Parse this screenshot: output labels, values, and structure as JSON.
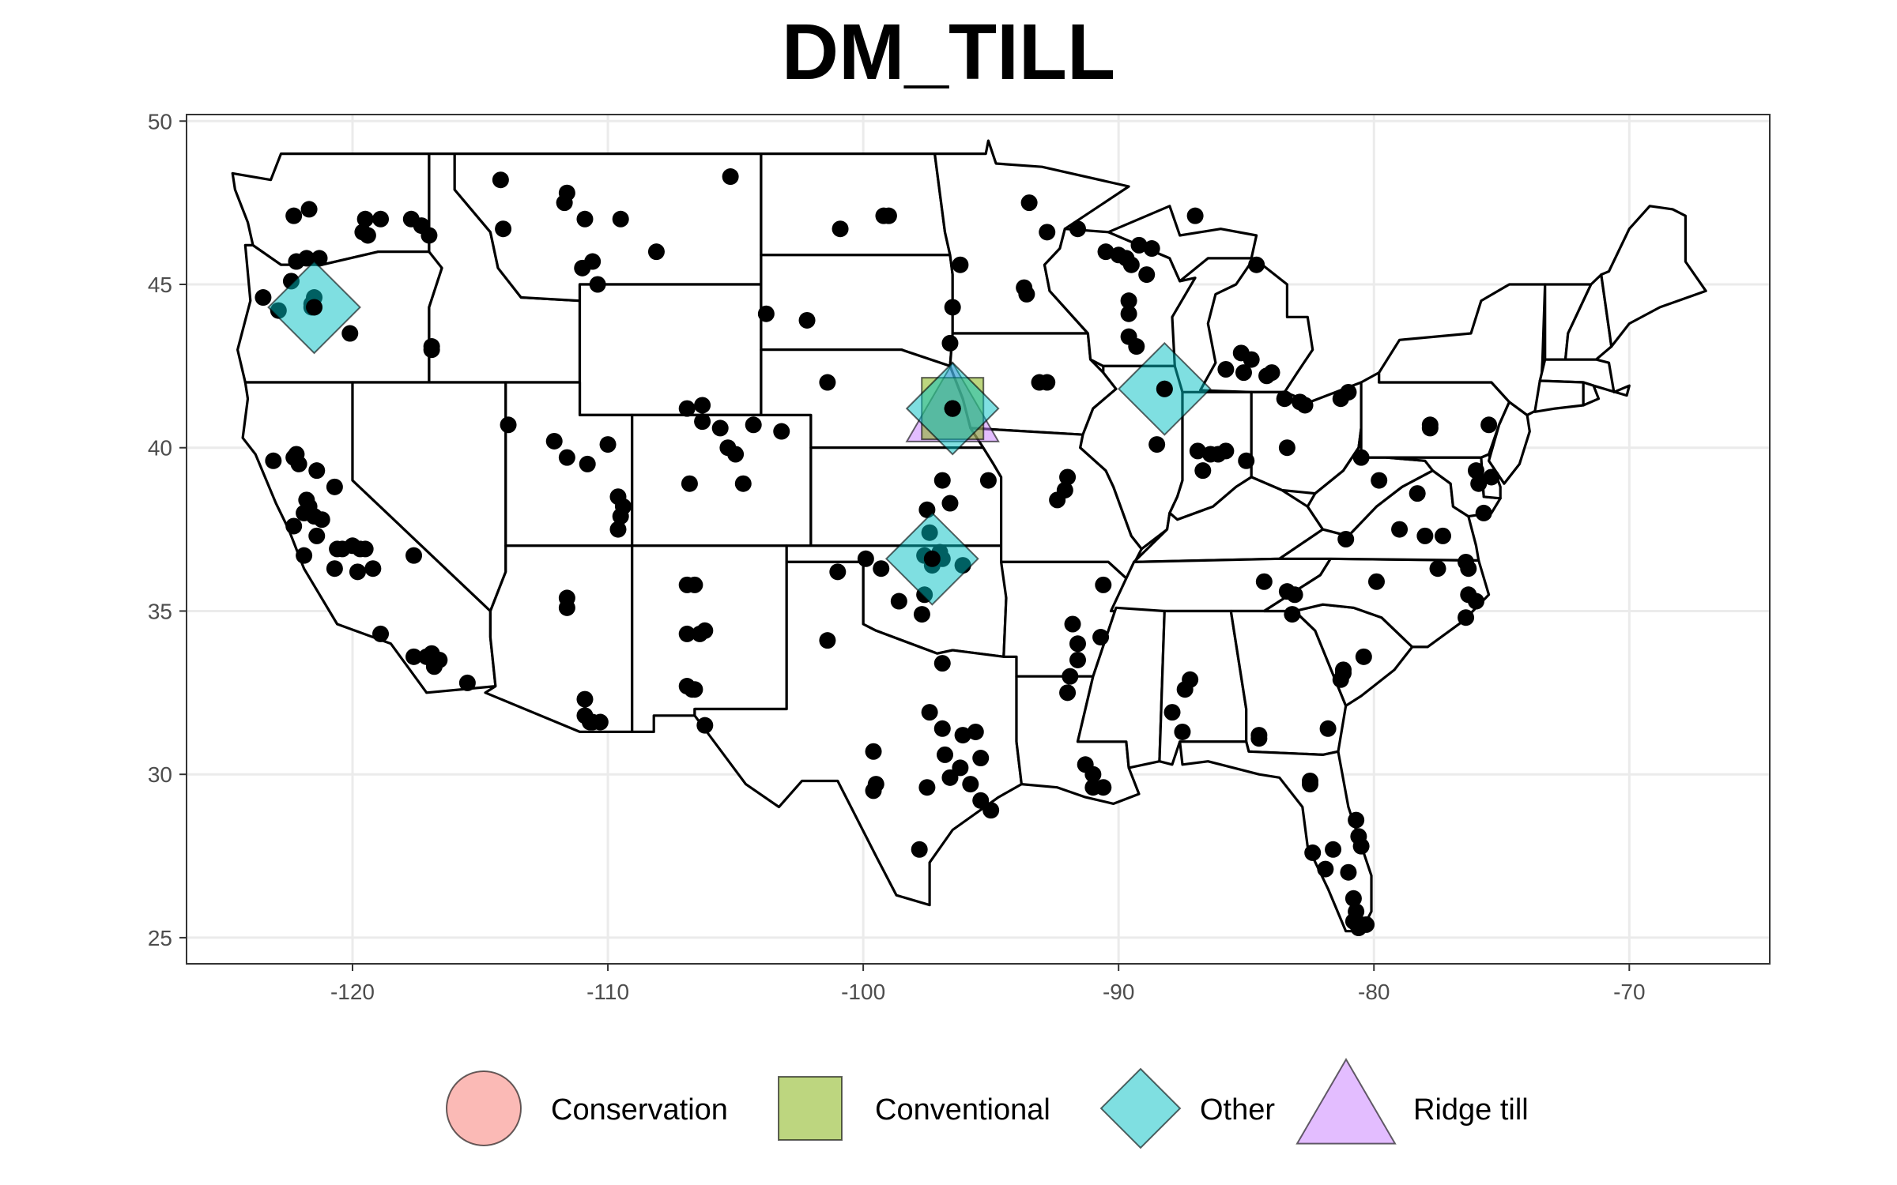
{
  "chart_data": {
    "type": "scatter",
    "title": "DM_TILL",
    "xlabel": "",
    "ylabel": "",
    "xlim": [
      -126.5,
      -64.5
    ],
    "ylim": [
      24.2,
      50.2
    ],
    "x_ticks": [
      -120,
      -110,
      -100,
      -90,
      -80,
      -70
    ],
    "y_ticks": [
      25,
      30,
      35,
      40,
      45,
      50
    ],
    "x_tick_labels": [
      "-120",
      "-110",
      "-100",
      "-90",
      "-80",
      "-70"
    ],
    "y_tick_labels": [
      "25",
      "30",
      "35",
      "40",
      "45",
      "50"
    ],
    "grid": true,
    "legend_position": "bottom",
    "legend": [
      {
        "name": "Conservation",
        "shape": "circle",
        "color": "#F8766D"
      },
      {
        "name": "Conventional",
        "shape": "square",
        "color": "#7CAE00"
      },
      {
        "name": "Other",
        "shape": "diamond",
        "color": "#00BFC4"
      },
      {
        "name": "Ridge till",
        "shape": "triangle",
        "color": "#C77CFF"
      }
    ],
    "series": [
      {
        "name": "Ridge till",
        "shape": "triangle",
        "points": [
          [
            -96.5,
            41.2
          ]
        ]
      },
      {
        "name": "Conventional",
        "shape": "square",
        "points": [
          [
            -96.5,
            41.2
          ]
        ]
      },
      {
        "name": "Other",
        "shape": "diamond",
        "points": [
          [
            -121.5,
            44.3
          ],
          [
            -96.5,
            41.2
          ],
          [
            -88.2,
            41.8
          ],
          [
            -97.3,
            36.6
          ]
        ]
      }
    ],
    "sites": [
      [
        -121.7,
        47.3
      ],
      [
        -122.3,
        47.1
      ],
      [
        -121.3,
        45.8
      ],
      [
        -121.8,
        45.8
      ],
      [
        -122.2,
        45.7
      ],
      [
        -122.4,
        45.1
      ],
      [
        -123.5,
        44.6
      ],
      [
        -122.9,
        44.2
      ],
      [
        -121.5,
        44.6
      ],
      [
        -121.6,
        44.3
      ],
      [
        -120.1,
        43.5
      ],
      [
        -119.6,
        46.6
      ],
      [
        -119.5,
        47.0
      ],
      [
        -119.4,
        46.5
      ],
      [
        -118.9,
        47.0
      ],
      [
        -117.7,
        47.0
      ],
      [
        -117.3,
        46.8
      ],
      [
        -117.0,
        46.5
      ],
      [
        -116.9,
        43.1
      ],
      [
        -116.9,
        43.0
      ],
      [
        -114.2,
        48.2
      ],
      [
        -114.1,
        46.7
      ],
      [
        -111.7,
        47.5
      ],
      [
        -111.6,
        47.8
      ],
      [
        -110.9,
        47.0
      ],
      [
        -109.5,
        47.0
      ],
      [
        -108.1,
        46.0
      ],
      [
        -110.6,
        45.7
      ],
      [
        -111.0,
        45.5
      ],
      [
        -110.4,
        45.0
      ],
      [
        -105.2,
        48.3
      ],
      [
        -100.9,
        46.7
      ],
      [
        -99.2,
        47.1
      ],
      [
        -99.0,
        47.1
      ],
      [
        -96.2,
        45.6
      ],
      [
        -96.5,
        44.3
      ],
      [
        -93.5,
        47.5
      ],
      [
        -96.6,
        43.2
      ],
      [
        -103.8,
        44.1
      ],
      [
        -102.2,
        43.9
      ],
      [
        -101.4,
        42.0
      ],
      [
        -106.9,
        41.2
      ],
      [
        -106.3,
        41.3
      ],
      [
        -106.3,
        40.8
      ],
      [
        -105.6,
        40.6
      ],
      [
        -105.3,
        40.0
      ],
      [
        -105.0,
        39.8
      ],
      [
        -104.3,
        40.7
      ],
      [
        -103.2,
        40.5
      ],
      [
        -106.8,
        38.9
      ],
      [
        -113.9,
        40.7
      ],
      [
        -112.1,
        40.2
      ],
      [
        -111.6,
        39.7
      ],
      [
        -110.8,
        39.5
      ],
      [
        -110.0,
        40.1
      ],
      [
        -109.6,
        38.5
      ],
      [
        -109.4,
        38.2
      ],
      [
        -109.5,
        37.9
      ],
      [
        -109.6,
        37.5
      ],
      [
        -93.7,
        44.9
      ],
      [
        -93.6,
        44.7
      ],
      [
        -92.8,
        46.6
      ],
      [
        -91.6,
        46.7
      ],
      [
        -90.5,
        46.0
      ],
      [
        -90.0,
        45.9
      ],
      [
        -89.7,
        45.8
      ],
      [
        -89.2,
        46.2
      ],
      [
        -89.5,
        45.6
      ],
      [
        -88.9,
        45.3
      ],
      [
        -88.7,
        46.1
      ],
      [
        -89.6,
        44.5
      ],
      [
        -89.6,
        44.1
      ],
      [
        -89.6,
        43.4
      ],
      [
        -89.3,
        43.1
      ],
      [
        -87.0,
        47.1
      ],
      [
        -84.6,
        45.6
      ],
      [
        -85.2,
        42.9
      ],
      [
        -84.8,
        42.7
      ],
      [
        -85.8,
        42.4
      ],
      [
        -85.1,
        42.3
      ],
      [
        -84.2,
        42.2
      ],
      [
        -84.0,
        42.3
      ],
      [
        -92.8,
        42.0
      ],
      [
        -88.5,
        40.1
      ],
      [
        -86.9,
        39.9
      ],
      [
        -86.4,
        39.8
      ],
      [
        -86.1,
        39.8
      ],
      [
        -85.8,
        39.9
      ],
      [
        -86.7,
        39.3
      ],
      [
        -85.0,
        39.6
      ],
      [
        -83.5,
        41.5
      ],
      [
        -82.9,
        41.4
      ],
      [
        -82.7,
        41.3
      ],
      [
        -83.4,
        40.0
      ],
      [
        -81.3,
        41.5
      ],
      [
        -81.0,
        41.7
      ],
      [
        -80.5,
        39.7
      ],
      [
        -77.8,
        40.7
      ],
      [
        -77.8,
        40.6
      ],
      [
        -75.5,
        40.7
      ],
      [
        -77.3,
        37.3
      ],
      [
        -76.0,
        39.3
      ],
      [
        -75.9,
        38.9
      ],
      [
        -75.4,
        39.1
      ],
      [
        -79.8,
        39.0
      ],
      [
        -78.3,
        38.6
      ],
      [
        -79.0,
        37.5
      ],
      [
        -77.5,
        36.3
      ],
      [
        -79.9,
        35.9
      ],
      [
        -81.1,
        37.2
      ],
      [
        -84.3,
        35.9
      ],
      [
        -83.4,
        35.6
      ],
      [
        -83.2,
        34.9
      ],
      [
        -76.3,
        35.5
      ],
      [
        -76.0,
        35.3
      ],
      [
        -76.4,
        34.8
      ],
      [
        -80.4,
        33.6
      ],
      [
        -81.2,
        33.2
      ],
      [
        -81.2,
        33.1
      ],
      [
        -81.3,
        32.9
      ],
      [
        -82.5,
        29.8
      ],
      [
        -80.5,
        27.8
      ],
      [
        -80.7,
        28.6
      ],
      [
        -80.6,
        28.1
      ],
      [
        -81.0,
        27.0
      ],
      [
        -81.6,
        27.7
      ],
      [
        -81.9,
        27.1
      ],
      [
        -82.4,
        27.6
      ],
      [
        -80.8,
        26.2
      ],
      [
        -80.7,
        25.8
      ],
      [
        -80.8,
        25.5
      ],
      [
        -80.5,
        25.4
      ],
      [
        -80.3,
        25.4
      ],
      [
        -80.6,
        25.3
      ],
      [
        -84.5,
        31.2
      ],
      [
        -84.5,
        31.1
      ],
      [
        -83.1,
        35.5
      ],
      [
        -81.8,
        31.4
      ],
      [
        -90.6,
        35.8
      ],
      [
        -90.7,
        34.2
      ],
      [
        -91.8,
        34.6
      ],
      [
        -91.6,
        34.0
      ],
      [
        -91.6,
        33.5
      ],
      [
        -91.9,
        33.0
      ],
      [
        -92.0,
        32.5
      ],
      [
        -91.3,
        30.3
      ],
      [
        -91.0,
        30.0
      ],
      [
        -91.0,
        29.6
      ],
      [
        -90.6,
        29.6
      ],
      [
        -87.2,
        32.9
      ],
      [
        -87.4,
        32.6
      ],
      [
        -87.9,
        31.9
      ],
      [
        -87.5,
        31.3
      ],
      [
        -92.0,
        39.1
      ],
      [
        -92.1,
        38.7
      ],
      [
        -92.4,
        38.4
      ],
      [
        -96.6,
        38.3
      ],
      [
        -96.9,
        39.0
      ],
      [
        -95.1,
        39.0
      ],
      [
        -97.4,
        37.4
      ],
      [
        -97.6,
        36.7
      ],
      [
        -97.0,
        36.8
      ],
      [
        -97.3,
        36.4
      ],
      [
        -96.9,
        36.6
      ],
      [
        -96.1,
        36.4
      ],
      [
        -97.6,
        35.5
      ],
      [
        -98.6,
        35.3
      ],
      [
        -97.7,
        34.9
      ],
      [
        -99.9,
        36.6
      ],
      [
        -99.3,
        36.3
      ],
      [
        -101.0,
        36.2
      ],
      [
        -96.9,
        33.4
      ],
      [
        -97.4,
        31.9
      ],
      [
        -96.9,
        31.4
      ],
      [
        -96.1,
        31.2
      ],
      [
        -95.6,
        31.3
      ],
      [
        -96.8,
        30.6
      ],
      [
        -96.2,
        30.2
      ],
      [
        -95.4,
        30.5
      ],
      [
        -95.8,
        29.7
      ],
      [
        -95.4,
        29.2
      ],
      [
        -95.0,
        28.9
      ],
      [
        -97.5,
        29.6
      ],
      [
        -96.6,
        29.9
      ],
      [
        -97.8,
        27.7
      ],
      [
        -99.6,
        30.7
      ],
      [
        -99.5,
        29.7
      ],
      [
        -99.6,
        29.5
      ],
      [
        -101.4,
        34.1
      ],
      [
        -97.5,
        38.1
      ],
      [
        -104.7,
        38.9
      ],
      [
        -123.1,
        39.6
      ],
      [
        -122.3,
        39.7
      ],
      [
        -122.2,
        39.8
      ],
      [
        -122.1,
        39.5
      ],
      [
        -121.4,
        39.3
      ],
      [
        -120.7,
        38.8
      ],
      [
        -121.8,
        38.4
      ],
      [
        -121.7,
        38.2
      ],
      [
        -121.9,
        38.0
      ],
      [
        -121.5,
        37.9
      ],
      [
        -121.2,
        37.8
      ],
      [
        -122.3,
        37.6
      ],
      [
        -121.4,
        37.3
      ],
      [
        -120.6,
        36.9
      ],
      [
        -120.4,
        36.9
      ],
      [
        -120.0,
        37.0
      ],
      [
        -120.7,
        36.3
      ],
      [
        -119.7,
        36.9
      ],
      [
        -119.5,
        36.9
      ],
      [
        -119.8,
        36.2
      ],
      [
        -119.2,
        36.3
      ],
      [
        -121.9,
        36.7
      ],
      [
        -117.6,
        36.7
      ],
      [
        -118.9,
        34.3
      ],
      [
        -117.6,
        33.6
      ],
      [
        -117.1,
        33.6
      ],
      [
        -116.9,
        33.7
      ],
      [
        -116.6,
        33.5
      ],
      [
        -116.8,
        33.3
      ],
      [
        -115.5,
        32.8
      ],
      [
        -111.6,
        35.4
      ],
      [
        -111.6,
        35.1
      ],
      [
        -110.9,
        32.3
      ],
      [
        -110.9,
        31.8
      ],
      [
        -110.7,
        31.6
      ],
      [
        -110.6,
        31.6
      ],
      [
        -110.3,
        31.6
      ],
      [
        -106.9,
        35.8
      ],
      [
        -106.6,
        35.8
      ],
      [
        -106.9,
        34.3
      ],
      [
        -106.4,
        34.3
      ],
      [
        -106.2,
        34.4
      ],
      [
        -106.9,
        32.7
      ],
      [
        -106.7,
        32.6
      ],
      [
        -106.6,
        32.6
      ],
      [
        -106.2,
        31.5
      ],
      [
        -82.5,
        29.7
      ],
      [
        -78.0,
        37.3
      ],
      [
        -75.7,
        38.0
      ],
      [
        -76.4,
        36.5
      ],
      [
        -76.3,
        36.3
      ],
      [
        -93.1,
        42.0
      ],
      [
        -96.5,
        41.2
      ],
      [
        -88.2,
        41.8
      ],
      [
        -121.6,
        44.4
      ]
    ]
  }
}
